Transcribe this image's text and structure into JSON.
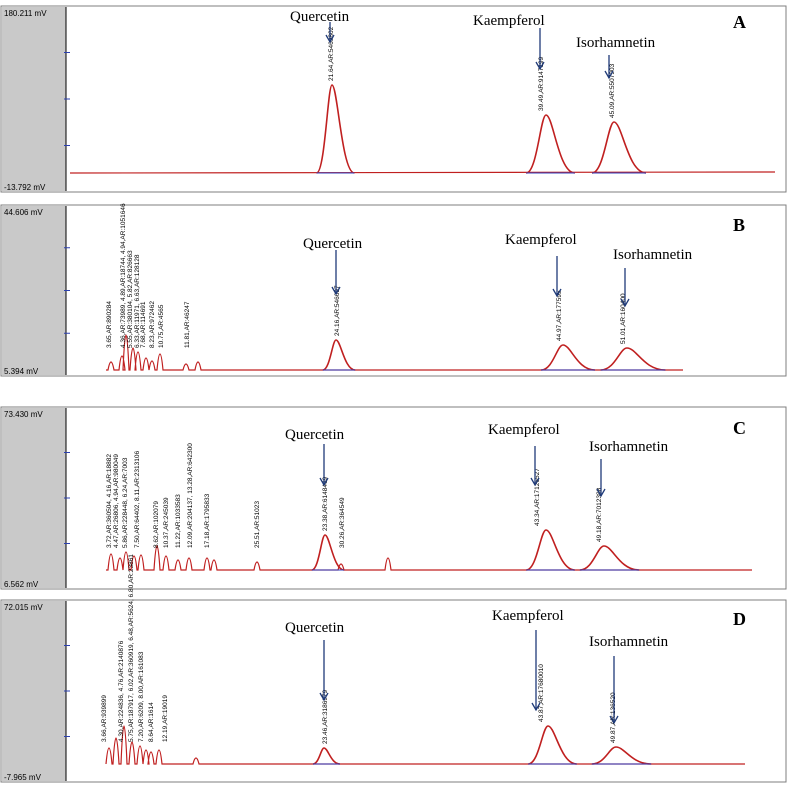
{
  "chart_data": [
    {
      "type": "line",
      "panel": "A",
      "ylim_label": [
        "180.211 mV",
        "-13.792 mV"
      ],
      "compounds": [
        {
          "name": "Quercetin",
          "peak_label": "21.64,AR:5469802",
          "rt": 21.64
        },
        {
          "name": "Kaempferol",
          "peak_label": "39.49,AR:9147199",
          "rt": 39.49
        },
        {
          "name": "Isorhamnetin",
          "peak_label": "45.09,AR:5507903",
          "rt": 45.09
        }
      ],
      "minor_peaks": []
    },
    {
      "type": "line",
      "panel": "B",
      "ylim_label": [
        "44.606 mV",
        "5.394 mV"
      ],
      "compounds": [
        {
          "name": "Quercetin",
          "peak_label": "24.16,AR:546697",
          "rt": 24.16
        },
        {
          "name": "Kaempferol",
          "peak_label": "44.97,AR:177595",
          "rt": 44.97
        },
        {
          "name": "Isorhamnetin",
          "peak_label": "51.01,AR:160400",
          "rt": 51.01
        }
      ],
      "minor_peaks": [
        "3.65,AR:890284",
        "4.36,AR:73989, 4.89,AR:18744, 4.94,AR:1051646",
        "5.55,AR:380104, 5.82,AR:826663",
        "6.33,AR:11971, 6.63,AR:128128",
        "7.68,AR:114691",
        "8.23,AR:972462",
        "10.75,AR:4565",
        "11.81,AR:46247"
      ]
    },
    {
      "type": "line",
      "panel": "C",
      "ylim_label": [
        "73.430 mV",
        "6.562 mV"
      ],
      "compounds": [
        {
          "name": "Quercetin",
          "peak_label": "23.38,AR:6148469",
          "rt": 23.38
        },
        {
          "name": "Kaempferol",
          "peak_label": "43.34,AR:17126527",
          "rt": 43.34
        },
        {
          "name": "Isorhamnetin",
          "peak_label": "49.18,AR:7012388",
          "rt": 49.18
        }
      ],
      "minor_peaks": [
        "3.72,AR:360504, 4.16,AR:18882",
        "4.47,AR:26806, 4.94,AR:980049",
        "5.86,AR:228448, 6.24,AR:7003",
        "7.50,AR:64402, 8.11,AR:2313106",
        "8.62,AR:102079",
        "10.37,AR:245039",
        "11.22,AR:1033583",
        "12.09,AR:204137, 13.28,AR:642300",
        "17.18,AR:1795833",
        "25.51,AR:51023",
        "30.26,AR:364549"
      ]
    },
    {
      "type": "line",
      "panel": "D",
      "ylim_label": [
        "72.015 mV",
        "-7.965 mV"
      ],
      "compounds": [
        {
          "name": "Quercetin",
          "peak_label": "23.46,AR:3186979",
          "rt": 23.46
        },
        {
          "name": "Kaempferol",
          "peak_label": "43.87,AR:17680010",
          "rt": 43.87
        },
        {
          "name": "Isorhamnetin",
          "peak_label": "49.87,AR:136520",
          "rt": 49.87
        }
      ],
      "minor_peaks": [
        "3.66,AR:939899",
        "4.30,AR:224836, 4.76,AR:2140876",
        "5.75,AR:187917, 6.02,AR:360919, 6.48,AR:5624, 6.80,AR:23861",
        "7.20,AR:6209, 8.00,AR:161083",
        "8.64,AR:1614",
        "12.19,AR:19019"
      ]
    }
  ]
}
